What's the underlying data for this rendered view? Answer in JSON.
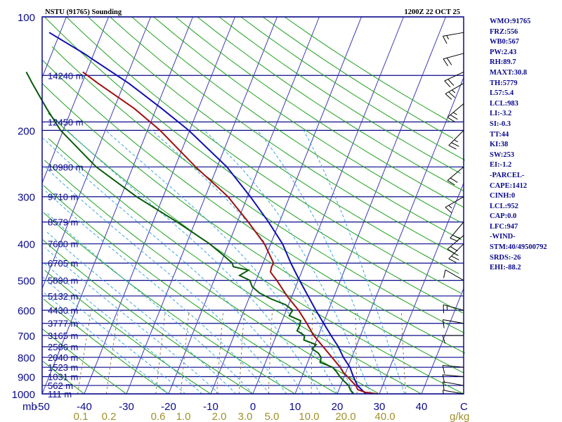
{
  "header": {
    "title": "NSTU (91765) Sounding",
    "time": "1200Z 22 OCT 25"
  },
  "stats": [
    "WMO:91765",
    "FRZ:556",
    "WB0:567",
    "PW:2.43",
    "RH:89.7",
    "MAXT:30.8",
    "TH:5779",
    "L57:5.4",
    "LCL:983",
    "LI:-3.2",
    "SI:-0.3",
    "TT:44",
    "KI:38",
    "SW:253",
    "EI:-1.2",
    "-PARCEL-",
    "CAPE:1412",
    "CINH:0",
    "LCL:952",
    "CAP:0.0",
    "LFC:947",
    "-WIND-",
    "STM:40/49500792",
    "SRDS:-26",
    "EHI:-88.2"
  ],
  "colors": {
    "isobar": "#0a0a8c",
    "isotherm": "#3a3ab4",
    "dry_adiabat": "#1fa01f",
    "moist_adiabat": "#3aa6d8",
    "mixing_ratio": "#807040",
    "temperature": "#a01010",
    "dewpoint": "#0a5a0a",
    "parcel": "#1010b0",
    "mixing_label": "#a0902a"
  },
  "chart_data": {
    "type": "skew-t",
    "pressure_axis": {
      "label": "mb",
      "ticks": [
        100,
        200,
        300,
        400,
        500,
        600,
        700,
        800,
        900,
        1000
      ],
      "range": [
        1000,
        100
      ],
      "scale": "log"
    },
    "temperature_axis": {
      "label": "C",
      "ticks": [
        -50,
        -40,
        -30,
        -20,
        -10,
        0,
        10,
        20,
        30,
        40
      ],
      "range": [
        -50,
        50
      ]
    },
    "mixing_ratio_axis": {
      "label": "g/kg",
      "ticks": [
        0.1,
        0.2,
        0.6,
        1.0,
        2.0,
        3.0,
        5.0,
        10.0,
        20.0,
        40.0
      ]
    },
    "heights": [
      {
        "p": 143,
        "label": "14240 m"
      },
      {
        "p": 190,
        "label": "12450 m"
      },
      {
        "p": 250,
        "label": "10980 m"
      },
      {
        "p": 300,
        "label": "9710 m"
      },
      {
        "p": 350,
        "label": "8579 m"
      },
      {
        "p": 400,
        "label": "7600 m"
      },
      {
        "p": 450,
        "label": "6705 m"
      },
      {
        "p": 500,
        "label": "5890 m"
      },
      {
        "p": 550,
        "label": "5132 m"
      },
      {
        "p": 600,
        "label": "4430 m"
      },
      {
        "p": 650,
        "label": "3777 m"
      },
      {
        "p": 700,
        "label": "3165 m"
      },
      {
        "p": 750,
        "label": "2586 m"
      },
      {
        "p": 800,
        "label": "2040 m"
      },
      {
        "p": 850,
        "label": "1523 m"
      },
      {
        "p": 900,
        "label": "1031 m"
      },
      {
        "p": 950,
        "label": "562 m"
      },
      {
        "p": 1000,
        "label": "111 m"
      }
    ],
    "temperature_series": [
      {
        "p": 1000,
        "t": 29.5
      },
      {
        "p": 990,
        "t": 26.5
      },
      {
        "p": 975,
        "t": 24.5
      },
      {
        "p": 950,
        "t": 23.6
      },
      {
        "p": 925,
        "t": 22.2
      },
      {
        "p": 900,
        "t": 20.8
      },
      {
        "p": 875,
        "t": 19.3
      },
      {
        "p": 850,
        "t": 18.2
      },
      {
        "p": 800,
        "t": 15.3
      },
      {
        "p": 750,
        "t": 12.2
      },
      {
        "p": 700,
        "t": 8.9
      },
      {
        "p": 650,
        "t": 6.1
      },
      {
        "p": 600,
        "t": 2.9
      },
      {
        "p": 550,
        "t": -1.2
      },
      {
        "p": 500,
        "t": -5.1
      },
      {
        "p": 475,
        "t": -7.4
      },
      {
        "p": 460,
        "t": -7.6
      },
      {
        "p": 450,
        "t": -7.5
      },
      {
        "p": 400,
        "t": -11.5
      },
      {
        "p": 350,
        "t": -17.4
      },
      {
        "p": 300,
        "t": -24.6
      },
      {
        "p": 250,
        "t": -35.1
      },
      {
        "p": 200,
        "t": -47.0
      },
      {
        "p": 175,
        "t": -55.2
      },
      {
        "p": 150,
        "t": -66.2
      },
      {
        "p": 140,
        "t": -70.9
      }
    ],
    "dewpoint_series": [
      {
        "p": 1000,
        "t": 23.8
      },
      {
        "p": 975,
        "t": 22.7
      },
      {
        "p": 950,
        "t": 21.9
      },
      {
        "p": 925,
        "t": 20.4
      },
      {
        "p": 900,
        "t": 19.0
      },
      {
        "p": 875,
        "t": 17.8
      },
      {
        "p": 850,
        "t": 16.4
      },
      {
        "p": 825,
        "t": 13.0
      },
      {
        "p": 800,
        "t": 12.7
      },
      {
        "p": 780,
        "t": 11.7
      },
      {
        "p": 760,
        "t": 9.8
      },
      {
        "p": 740,
        "t": 10.3
      },
      {
        "p": 720,
        "t": 7.0
      },
      {
        "p": 700,
        "t": 6.7
      },
      {
        "p": 680,
        "t": 4.5
      },
      {
        "p": 660,
        "t": 4.6
      },
      {
        "p": 640,
        "t": 4.4
      },
      {
        "p": 620,
        "t": 1.2
      },
      {
        "p": 600,
        "t": 1.5
      },
      {
        "p": 580,
        "t": -0.7
      },
      {
        "p": 560,
        "t": -4.7
      },
      {
        "p": 540,
        "t": -8.0
      },
      {
        "p": 520,
        "t": -10.3
      },
      {
        "p": 500,
        "t": -11.5
      },
      {
        "p": 485,
        "t": -14.4
      },
      {
        "p": 470,
        "t": -12.8
      },
      {
        "p": 460,
        "t": -16.7
      },
      {
        "p": 450,
        "t": -17.3
      },
      {
        "p": 430,
        "t": -20.0
      },
      {
        "p": 400,
        "t": -24.5
      },
      {
        "p": 350,
        "t": -34.3
      },
      {
        "p": 300,
        "t": -46.3
      },
      {
        "p": 250,
        "t": -58.7
      },
      {
        "p": 200,
        "t": -70.6
      },
      {
        "p": 175,
        "t": -76.0
      },
      {
        "p": 150,
        "t": -81.8
      },
      {
        "p": 140,
        "t": -84.3
      }
    ],
    "parcel_series": [
      {
        "p": 1000,
        "t": 26.8
      },
      {
        "p": 950,
        "t": 24.0
      },
      {
        "p": 900,
        "t": 22.2
      },
      {
        "p": 850,
        "t": 20.5
      },
      {
        "p": 800,
        "t": 18.0
      },
      {
        "p": 750,
        "t": 15.8
      },
      {
        "p": 700,
        "t": 13.0
      },
      {
        "p": 650,
        "t": 10.1
      },
      {
        "p": 600,
        "t": 7.0
      },
      {
        "p": 550,
        "t": 3.8
      },
      {
        "p": 500,
        "t": 0.3
      },
      {
        "p": 450,
        "t": -3.4
      },
      {
        "p": 400,
        "t": -7.2
      },
      {
        "p": 350,
        "t": -12.6
      },
      {
        "p": 300,
        "t": -19.3
      },
      {
        "p": 250,
        "t": -27.7
      },
      {
        "p": 200,
        "t": -40.2
      },
      {
        "p": 175,
        "t": -48.7
      },
      {
        "p": 150,
        "t": -58.9
      },
      {
        "p": 125,
        "t": -72.4
      },
      {
        "p": 110,
        "t": -82.6
      }
    ],
    "wind_barbs": [
      {
        "p": 1000,
        "dir": 280,
        "spd": 5
      },
      {
        "p": 950,
        "dir": 280,
        "spd": 10
      },
      {
        "p": 900,
        "dir": 275,
        "spd": 10
      },
      {
        "p": 850,
        "dir": 275,
        "spd": 10
      },
      {
        "p": 700,
        "dir": 270,
        "spd": 10
      },
      {
        "p": 650,
        "dir": 280,
        "spd": 10
      },
      {
        "p": 600,
        "dir": 285,
        "spd": 15
      },
      {
        "p": 500,
        "dir": 300,
        "spd": 10
      },
      {
        "p": 400,
        "dir": 225,
        "spd": 25
      },
      {
        "p": 380,
        "dir": 230,
        "spd": 20
      },
      {
        "p": 350,
        "dir": 220,
        "spd": 20
      },
      {
        "p": 300,
        "dir": 240,
        "spd": 15
      },
      {
        "p": 250,
        "dir": 230,
        "spd": 20
      },
      {
        "p": 200,
        "dir": 225,
        "spd": 25
      },
      {
        "p": 170,
        "dir": 230,
        "spd": 25
      },
      {
        "p": 150,
        "dir": 240,
        "spd": 25
      },
      {
        "p": 140,
        "dir": 245,
        "spd": 20
      },
      {
        "p": 125,
        "dir": 255,
        "spd": 20
      },
      {
        "p": 110,
        "dir": 260,
        "spd": 15
      }
    ]
  }
}
